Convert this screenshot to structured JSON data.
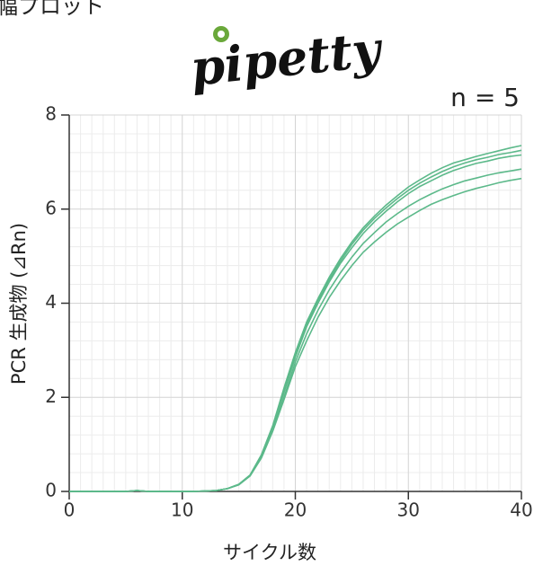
{
  "header": {
    "title": "幅プロット",
    "logo": "pipetty"
  },
  "chart_data": {
    "type": "line",
    "annotation": "n = 5",
    "xlabel": "サイクル数",
    "ylabel": "PCR 生成物 (⊿Rn)",
    "xlim": [
      0,
      40
    ],
    "xticks": [
      0,
      10,
      20,
      30,
      40
    ],
    "ylim": [
      0,
      8
    ],
    "yticks": [
      0,
      2,
      4,
      6,
      8
    ],
    "grid": true,
    "x": [
      0,
      1,
      2,
      3,
      4,
      5,
      6,
      7,
      8,
      9,
      10,
      11,
      12,
      13,
      14,
      15,
      16,
      17,
      18,
      19,
      20,
      21,
      22,
      23,
      24,
      25,
      26,
      27,
      28,
      29,
      30,
      31,
      32,
      33,
      34,
      35,
      36,
      37,
      38,
      39,
      40
    ],
    "series": [
      {
        "color": "#5cb98a",
        "values": [
          0,
          0,
          0,
          0,
          0,
          0,
          0.02,
          0,
          0,
          0,
          0,
          0,
          0.01,
          0.02,
          0.06,
          0.15,
          0.35,
          0.78,
          1.4,
          2.2,
          2.95,
          3.6,
          4.1,
          4.55,
          4.95,
          5.3,
          5.6,
          5.85,
          6.08,
          6.28,
          6.47,
          6.62,
          6.76,
          6.88,
          6.98,
          7.05,
          7.12,
          7.18,
          7.24,
          7.3,
          7.35
        ]
      },
      {
        "color": "#5cb98a",
        "values": [
          0,
          0,
          0,
          0,
          0,
          0,
          0.02,
          0,
          0,
          0,
          0,
          0,
          0.01,
          0.02,
          0.06,
          0.15,
          0.35,
          0.76,
          1.37,
          2.15,
          2.9,
          3.55,
          4.05,
          4.5,
          4.9,
          5.25,
          5.55,
          5.8,
          6.02,
          6.22,
          6.4,
          6.55,
          6.68,
          6.8,
          6.9,
          6.98,
          7.05,
          7.1,
          7.16,
          7.2,
          7.25
        ]
      },
      {
        "color": "#5cb98a",
        "values": [
          0,
          0,
          0,
          0,
          0,
          0,
          0.02,
          0,
          0,
          0,
          0,
          0,
          0.01,
          0.02,
          0.06,
          0.15,
          0.34,
          0.74,
          1.34,
          2.1,
          2.85,
          3.5,
          4.0,
          4.45,
          4.85,
          5.18,
          5.48,
          5.73,
          5.95,
          6.15,
          6.33,
          6.48,
          6.6,
          6.72,
          6.82,
          6.9,
          6.97,
          7.02,
          7.08,
          7.12,
          7.15
        ]
      },
      {
        "color": "#5cb98a",
        "values": [
          0,
          0,
          0,
          0,
          0,
          0,
          0.02,
          0,
          0,
          0,
          0,
          0,
          0.01,
          0.02,
          0.06,
          0.14,
          0.33,
          0.72,
          1.3,
          2.0,
          2.75,
          3.35,
          3.85,
          4.28,
          4.65,
          4.98,
          5.27,
          5.5,
          5.72,
          5.9,
          6.06,
          6.2,
          6.32,
          6.43,
          6.52,
          6.6,
          6.66,
          6.72,
          6.77,
          6.81,
          6.85
        ]
      },
      {
        "color": "#5cb98a",
        "values": [
          0,
          0,
          0,
          0,
          0,
          0,
          0.02,
          0,
          0,
          0,
          0,
          0,
          0.01,
          0.02,
          0.06,
          0.14,
          0.33,
          0.71,
          1.28,
          1.95,
          2.65,
          3.2,
          3.7,
          4.12,
          4.48,
          4.8,
          5.08,
          5.3,
          5.5,
          5.68,
          5.83,
          5.97,
          6.1,
          6.2,
          6.29,
          6.37,
          6.44,
          6.5,
          6.56,
          6.61,
          6.65
        ]
      }
    ]
  }
}
